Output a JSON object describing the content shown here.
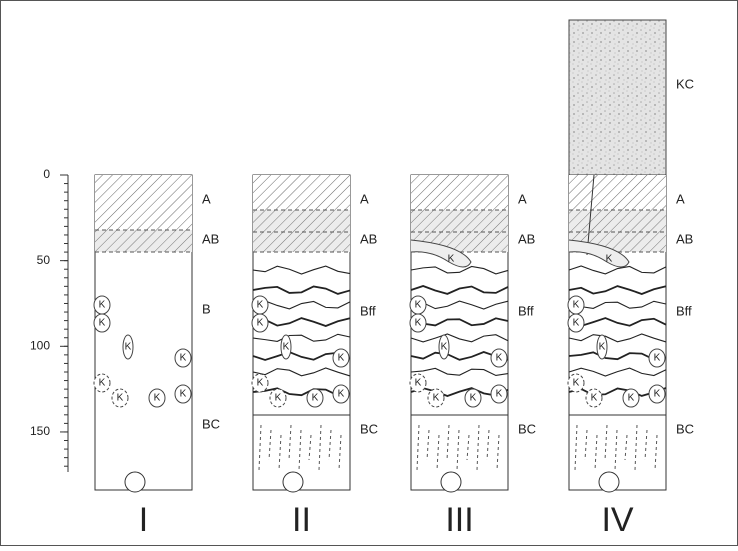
{
  "depth_axis": {
    "ticks": [
      0,
      50,
      100,
      150
    ]
  },
  "profiles": [
    {
      "numeral": "I",
      "horizons": [
        "A",
        "AB",
        "B",
        "BC"
      ],
      "nodules": [
        "K",
        "K",
        "K",
        "K",
        "K",
        "K",
        "K",
        "K"
      ]
    },
    {
      "numeral": "II",
      "horizons": [
        "A",
        "AB",
        "Bff",
        "BC"
      ],
      "nodules": [
        "K",
        "K",
        "K",
        "K",
        "K",
        "K",
        "K",
        "K"
      ]
    },
    {
      "numeral": "III",
      "horizons": [
        "A",
        "AB",
        "Bff",
        "BC"
      ],
      "nodules": [
        "K",
        "K",
        "K",
        "K",
        "K",
        "K",
        "K",
        "K",
        "K"
      ]
    },
    {
      "numeral": "IV",
      "horizons": [
        "KC",
        "A",
        "AB",
        "Bff",
        "BC"
      ],
      "nodules": [
        "K",
        "K",
        "K",
        "K",
        "K",
        "K",
        "K",
        "K",
        "K"
      ]
    }
  ]
}
